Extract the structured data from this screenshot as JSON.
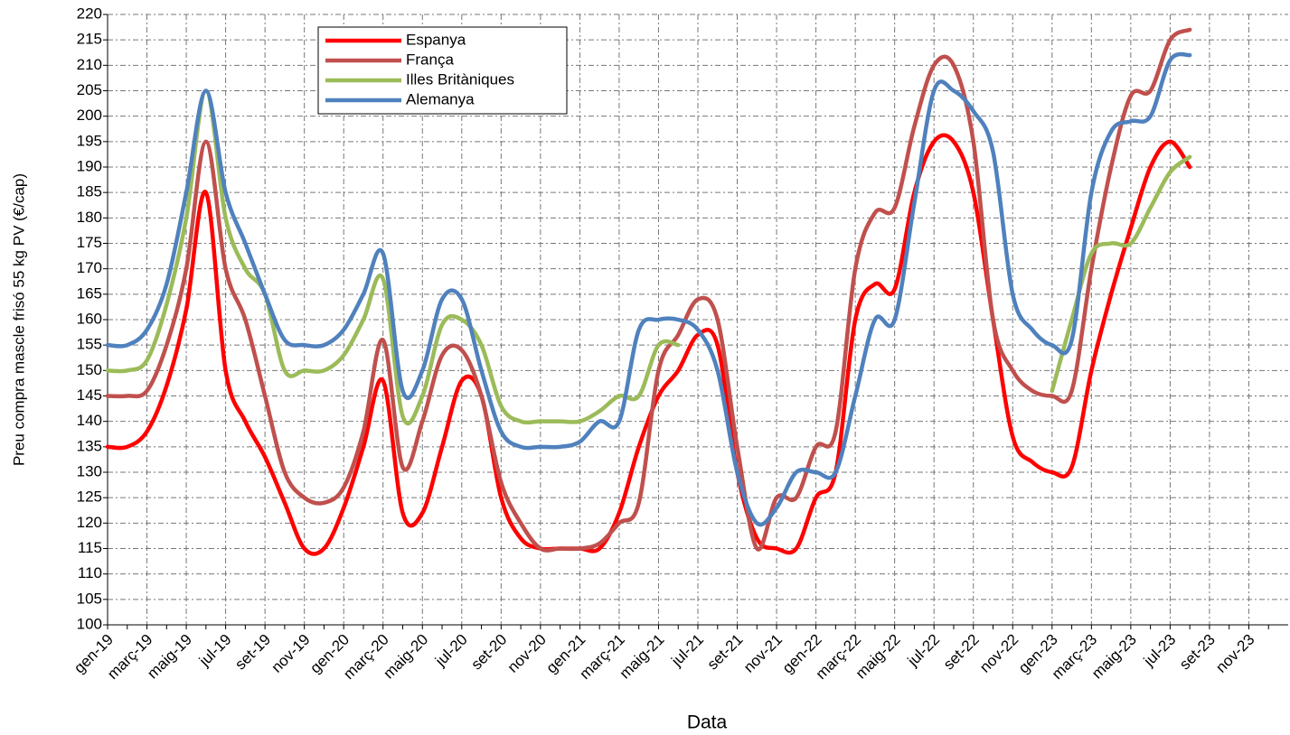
{
  "chart_data": {
    "type": "line",
    "y_label": "Preu compra mascle frisó 55 kg PV (€/cap)",
    "x_label": "Data",
    "categories": [
      "gen-19",
      null,
      "març-19",
      null,
      "maig-19",
      null,
      "jul-19",
      null,
      "set-19",
      null,
      "nov-19",
      null,
      "gen-20",
      null,
      "març-20",
      null,
      "maig-20",
      null,
      "jul-20",
      null,
      "set-20",
      null,
      "nov-20",
      null,
      "gen-21",
      null,
      "març-21",
      null,
      "maig-21",
      null,
      "jul-21",
      null,
      "set-21",
      null,
      "nov-21",
      null,
      "gen-22",
      null,
      "març-22",
      null,
      "maig-22",
      null,
      "jul-22",
      null,
      "set-22",
      null,
      "nov-22",
      null,
      "gen-23",
      null,
      "març-23",
      null,
      "maig-23",
      null,
      "jul-23",
      null,
      "set-23",
      null,
      "nov-23",
      null
    ],
    "series": [
      {
        "name": "Espanya",
        "color": "#ff0000",
        "values": [
          135,
          135,
          138,
          147,
          162,
          185,
          150,
          140,
          133,
          124,
          115,
          115,
          123,
          135,
          148,
          122,
          122,
          135,
          148,
          145,
          125,
          117,
          115,
          115,
          115,
          115,
          122,
          135,
          145,
          150,
          157,
          155,
          130,
          117,
          115,
          115,
          125,
          130,
          160,
          167,
          166,
          185,
          195,
          195,
          185,
          160,
          137,
          132,
          130,
          131,
          150,
          165,
          178,
          190,
          195,
          190,
          null,
          null,
          null,
          null
        ]
      },
      {
        "name": "França",
        "color": "#c0504d",
        "values": [
          145,
          145,
          146,
          155,
          170,
          195,
          170,
          160,
          145,
          130,
          125,
          124,
          127,
          138,
          156,
          131,
          140,
          153,
          154,
          145,
          128,
          120,
          115,
          115,
          115,
          116,
          120,
          124,
          150,
          157,
          164,
          160,
          135,
          115,
          125,
          125,
          135,
          138,
          170,
          181,
          182,
          198,
          210,
          210,
          195,
          160,
          150,
          146,
          145,
          146,
          170,
          190,
          204,
          205,
          215,
          217,
          null,
          null,
          null,
          null
        ]
      },
      {
        "name": "Illes Britàniques",
        "color": "#9bbb59",
        "values": [
          150,
          150,
          152,
          163,
          180,
          205,
          180,
          170,
          165,
          150,
          150,
          150,
          153,
          160,
          168,
          141,
          145,
          159,
          160,
          155,
          143,
          140,
          140,
          140,
          140,
          142,
          145,
          145,
          155,
          155,
          null,
          null,
          null,
          null,
          null,
          null,
          null,
          null,
          null,
          null,
          null,
          null,
          null,
          null,
          null,
          null,
          null,
          null,
          146,
          160,
          173,
          175,
          175,
          182,
          189,
          192,
          null,
          null,
          null,
          null
        ]
      },
      {
        "name": "Alemanya",
        "color": "#4f81bd",
        "values": [
          155,
          155,
          158,
          167,
          185,
          205,
          185,
          175,
          165,
          156,
          155,
          155,
          158,
          165,
          173,
          146,
          150,
          164,
          164,
          150,
          138,
          135,
          135,
          135,
          136,
          140,
          140,
          158,
          160,
          160,
          158,
          150,
          130,
          120,
          123,
          130,
          130,
          130,
          145,
          160,
          160,
          183,
          205,
          205,
          201,
          193,
          165,
          158,
          155,
          156,
          185,
          197,
          199,
          200,
          211,
          212,
          null,
          null,
          null,
          null
        ]
      }
    ],
    "ylim": [
      100,
      220
    ],
    "yticks": [
      100,
      105,
      110,
      115,
      120,
      125,
      130,
      135,
      140,
      145,
      150,
      155,
      160,
      165,
      170,
      175,
      180,
      185,
      190,
      195,
      200,
      205,
      210,
      215,
      220
    ],
    "grid": true,
    "legend": "top-left"
  }
}
